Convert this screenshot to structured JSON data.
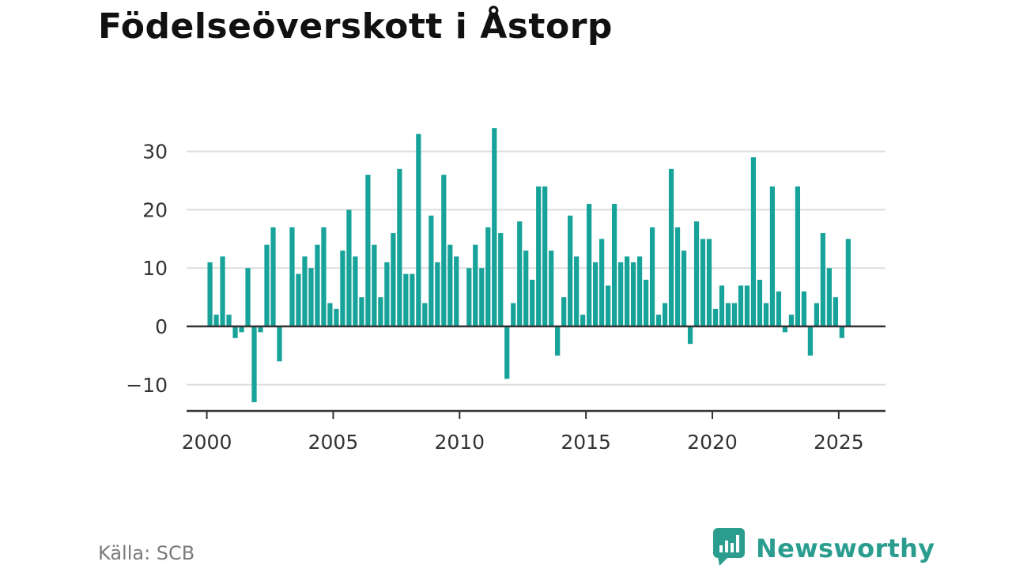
{
  "title": "Födelseöverskott i Åstorp",
  "source": "Källa: SCB",
  "brand": {
    "name": "Newsworthy",
    "logo_icon": "bar-chart-speech-bubble-icon"
  },
  "colors": {
    "bar": "#17a39a",
    "grid": "#dddddd",
    "zero": "#333333",
    "axis": "#333333",
    "brand": "#2a9d8f"
  },
  "chart_data": {
    "type": "bar",
    "title": "Födelseöverskott i Åstorp",
    "xlabel": "",
    "ylabel": "",
    "frequency": "quarterly",
    "x_start": "2000 Q1",
    "ylim": [
      -14.5,
      37
    ],
    "xlim": [
      1999.2,
      2026.85
    ],
    "y_ticks": [
      -10,
      0,
      10,
      20,
      30
    ],
    "y_tick_labels": [
      "−10",
      "0",
      "10",
      "20",
      "30"
    ],
    "x_ticks": [
      2000,
      2005,
      2010,
      2015,
      2020,
      2025
    ],
    "x_tick_labels": [
      "2000",
      "2005",
      "2010",
      "2015",
      "2020",
      "2025"
    ],
    "grid": true,
    "values": [
      11,
      2,
      12,
      2,
      -2,
      -1,
      10,
      -13,
      -1,
      14,
      17,
      -6,
      0,
      17,
      9,
      12,
      10,
      14,
      17,
      4,
      3,
      13,
      20,
      12,
      5,
      26,
      14,
      5,
      11,
      16,
      27,
      9,
      9,
      33,
      4,
      19,
      11,
      26,
      14,
      12,
      0,
      10,
      14,
      10,
      17,
      34,
      16,
      -9,
      4,
      18,
      13,
      8,
      24,
      24,
      13,
      -5,
      5,
      19,
      12,
      2,
      21,
      11,
      15,
      7,
      21,
      11,
      12,
      11,
      12,
      8,
      17,
      2,
      4,
      27,
      17,
      13,
      -3,
      18,
      15,
      15,
      3,
      7,
      4,
      4,
      7,
      7,
      29,
      8,
      4,
      24,
      6,
      -1,
      2,
      24,
      6,
      -5,
      4,
      16,
      10,
      5,
      -2,
      15
    ]
  }
}
